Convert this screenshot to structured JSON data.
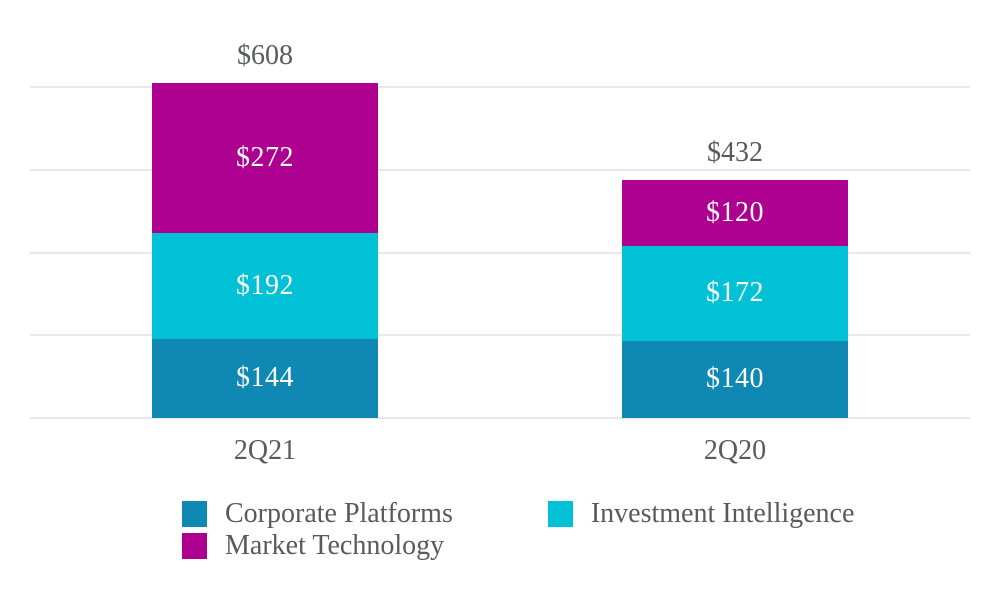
{
  "chart_data": {
    "type": "bar",
    "stacked": true,
    "title": "",
    "categories": [
      "2Q21",
      "2Q20"
    ],
    "series": [
      {
        "name": "Corporate Platforms",
        "color": "#0f88b4",
        "values": [
          144,
          140
        ],
        "labels": [
          "$144",
          "$140"
        ]
      },
      {
        "name": "Investment Intelligence",
        "color": "#00c1d5",
        "values": [
          192,
          172
        ],
        "labels": [
          "$192",
          "$172"
        ]
      },
      {
        "name": "Market Technology",
        "color": "#ae0090",
        "values": [
          272,
          120
        ],
        "labels": [
          "$272",
          "$120"
        ]
      }
    ],
    "totals": [
      608,
      432
    ],
    "total_labels": [
      "$608",
      "$432"
    ],
    "value_prefix": "$",
    "ylim": [
      0,
      600
    ],
    "gridline_values": [
      0,
      150,
      300,
      450,
      600
    ],
    "y_tick_labels_visible": false,
    "grid": true,
    "legend_position": "bottom"
  },
  "colors": {
    "text": "#595a5c",
    "bar_label": "#ffffff",
    "gridline": "#e8e8e8",
    "background": "#ffffff"
  }
}
